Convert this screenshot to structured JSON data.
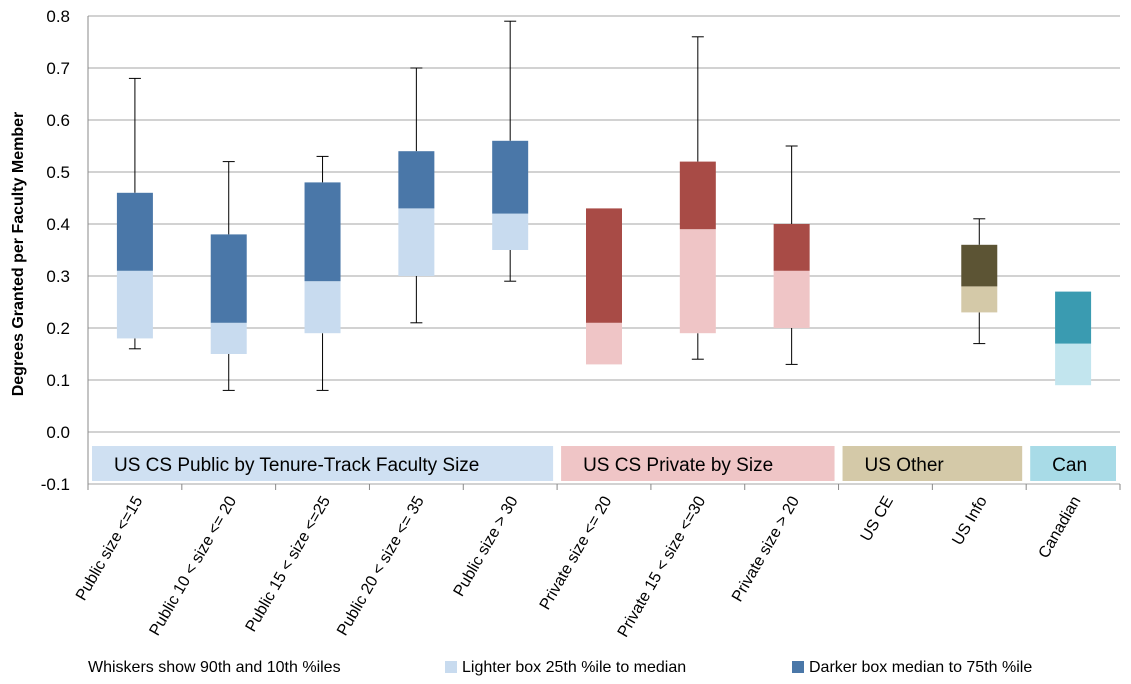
{
  "chart_data": {
    "type": "box",
    "ylabel": "Degrees Granted per Faculty Member",
    "ylim": [
      -0.1,
      0.8
    ],
    "y_ticks": [
      "0.8",
      "0.7",
      "0.6",
      "0.5",
      "0.4",
      "0.3",
      "0.2",
      "0.1",
      "0.0",
      "-0.1"
    ],
    "grid": true,
    "categories": [
      "Public size <=15",
      "Public 10 < size <= 20",
      "Public 15 < size <=25",
      "Public 20 < size <= 35",
      "Public size > 30",
      "Private size <= 20",
      "Private 15 < size <=30",
      "Private size > 20",
      "US CE",
      "US Info",
      "Canadian"
    ],
    "boxes": [
      {
        "category": "Public size <=15",
        "p10": 0.16,
        "p25": 0.18,
        "median": 0.31,
        "p75": 0.46,
        "p90": 0.68,
        "light": "#c8dbef",
        "dark": "#4a77a8"
      },
      {
        "category": "Public 10 < size <= 20",
        "p10": 0.08,
        "p25": 0.15,
        "median": 0.21,
        "p75": 0.38,
        "p90": 0.52,
        "light": "#c8dbef",
        "dark": "#4a77a8"
      },
      {
        "category": "Public 15 < size <=25",
        "p10": 0.08,
        "p25": 0.19,
        "median": 0.29,
        "p75": 0.48,
        "p90": 0.53,
        "light": "#c8dbef",
        "dark": "#4a77a8"
      },
      {
        "category": "Public 20 < size <= 35",
        "p10": 0.21,
        "p25": 0.3,
        "median": 0.43,
        "p75": 0.54,
        "p90": 0.7,
        "light": "#c8dbef",
        "dark": "#4a77a8"
      },
      {
        "category": "Public size > 30",
        "p10": 0.29,
        "p25": 0.35,
        "median": 0.42,
        "p75": 0.56,
        "p90": 0.79,
        "light": "#c8dbef",
        "dark": "#4a77a8"
      },
      {
        "category": "Private size <= 20",
        "p10": null,
        "p25": 0.13,
        "median": 0.21,
        "p75": 0.43,
        "p90": null,
        "light": "#efc5c6",
        "dark": "#a84b46"
      },
      {
        "category": "Private 15 < size <=30",
        "p10": 0.14,
        "p25": 0.19,
        "median": 0.39,
        "p75": 0.52,
        "p90": 0.76,
        "light": "#efc5c6",
        "dark": "#a84b46"
      },
      {
        "category": "Private size > 20",
        "p10": 0.13,
        "p25": 0.2,
        "median": 0.31,
        "p75": 0.4,
        "p90": 0.55,
        "light": "#efc5c6",
        "dark": "#a84b46"
      },
      {
        "category": "US CE",
        "p10": null,
        "p25": null,
        "median": null,
        "p75": null,
        "p90": null,
        "light": "#d4c9a8",
        "dark": "#5c5434"
      },
      {
        "category": "US Info",
        "p10": 0.17,
        "p25": 0.23,
        "median": 0.28,
        "p75": 0.36,
        "p90": 0.41,
        "light": "#d4c9a8",
        "dark": "#5c5434"
      },
      {
        "category": "Canadian",
        "p10": null,
        "p25": 0.09,
        "median": 0.17,
        "p75": 0.27,
        "p90": null,
        "light": "#c2e5ee",
        "dark": "#3a9bb1"
      }
    ],
    "groups": [
      {
        "label": "US CS Public by Tenure-Track Faculty Size",
        "first": 0,
        "last": 4,
        "color": "#cfe0f2"
      },
      {
        "label": "US CS Private by Size",
        "first": 5,
        "last": 7,
        "color": "#efc5c6"
      },
      {
        "label": "US Other",
        "first": 8,
        "last": 9,
        "color": "#d4c9a8"
      },
      {
        "label": "Can",
        "first": 10,
        "last": 10,
        "color": "#a8dbe7"
      }
    ],
    "notes": {
      "whiskers": "Whiskers show 90th and 10th %iles",
      "light_box": "Lighter box  25th %ile to median",
      "dark_box": "Darker box  median to 75th %ile"
    },
    "legend_colors": {
      "light": "#c8dbef",
      "dark": "#4a77a8"
    },
    "colors": {
      "grid": "#a6a6a6",
      "axis": "#888888",
      "whisker": "#000000"
    }
  }
}
